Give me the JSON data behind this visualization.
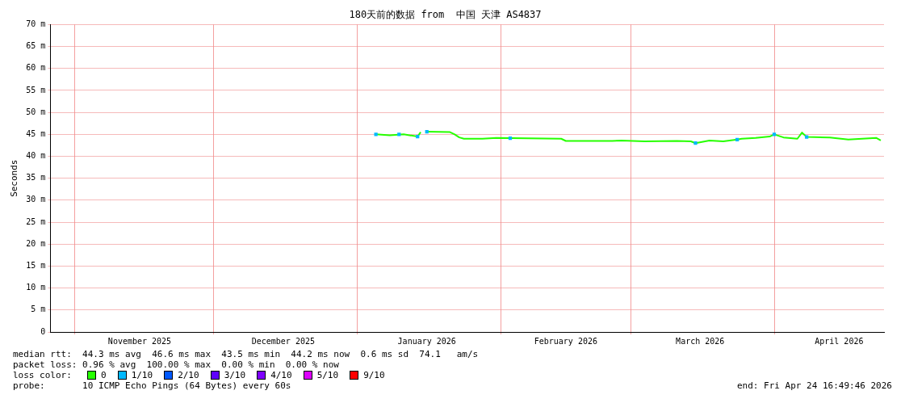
{
  "chart_data": {
    "type": "line",
    "title": "180天前的数据 from  中国 天津 AS4837",
    "ylabel": "Seconds",
    "legend_title": "loss color:",
    "xlim": [
      "2025-10-26T16:49",
      "2026-04-24T16:49"
    ],
    "xticks": [
      {
        "value": "2025-11-01",
        "label": null
      },
      {
        "value": "2025-11-15",
        "label": "November 2025"
      },
      {
        "value": "2025-12-01",
        "label": null
      },
      {
        "value": "2025-12-16",
        "label": "December 2025"
      },
      {
        "value": "2026-01-01",
        "label": null
      },
      {
        "value": "2026-01-16",
        "label": "January 2026"
      },
      {
        "value": "2026-02-01",
        "label": null
      },
      {
        "value": "2026-02-15",
        "label": "February 2026"
      },
      {
        "value": "2026-03-01",
        "label": null
      },
      {
        "value": "2026-03-16",
        "label": "March 2026"
      },
      {
        "value": "2026-04-01",
        "label": null
      },
      {
        "value": "2026-04-15",
        "label": "April 2026"
      }
    ],
    "ylim": [
      0,
      70
    ],
    "yticks": [
      0,
      {
        "value": 5,
        "label": "5 m"
      },
      {
        "value": 10,
        "label": "10 m"
      },
      {
        "value": 15,
        "label": "15 m"
      },
      {
        "value": 20,
        "label": "20 m"
      },
      {
        "value": 25,
        "label": "25 m"
      },
      {
        "value": 30,
        "label": "30 m"
      },
      {
        "value": 35,
        "label": "35 m"
      },
      {
        "value": 40,
        "label": "40 m"
      },
      {
        "value": 45,
        "label": "45 m"
      },
      {
        "value": 50,
        "label": "50 m"
      },
      {
        "value": 55,
        "label": "55 m"
      },
      {
        "value": 60,
        "label": "60 m"
      },
      {
        "value": 65,
        "label": "65 m"
      },
      {
        "value": 70,
        "label": "70 m"
      }
    ],
    "grid": true,
    "legend": "bottom",
    "line_style": "solid",
    "series": [
      {
        "name": "0",
        "color": "#26ff00",
        "marker": "none",
        "x": [
          "2026-01-05",
          "2026-01-08",
          "2026-01-11",
          "2026-01-14",
          "2026-01-14T16:00",
          "2026-01-15",
          "2026-01-16",
          "2026-01-21",
          "2026-01-22",
          "2026-01-23",
          "2026-01-24",
          "2026-01-28",
          "2026-01-31",
          "2026-02-07",
          "2026-02-14",
          "2026-02-15",
          "2026-02-25",
          "2026-02-27",
          "2026-03-04",
          "2026-03-11",
          "2026-03-14",
          "2026-03-15",
          "2026-03-18",
          "2026-03-21",
          "2026-03-24",
          "2026-03-25",
          "2026-03-28",
          "2026-03-31",
          "2026-04-01",
          "2026-04-03",
          "2026-04-06",
          "2026-04-07",
          "2026-04-08",
          "2026-04-13",
          "2026-04-17",
          "2026-04-20",
          "2026-04-23",
          "2026-04-24"
        ],
        "values": [
          45.0,
          44.8,
          45.0,
          44.5,
          45.5,
          null,
          45.6,
          45.5,
          45.0,
          44.3,
          44.0,
          44.0,
          44.2,
          44.1,
          44.0,
          43.5,
          43.5,
          43.6,
          43.4,
          43.5,
          43.4,
          43.0,
          43.6,
          43.4,
          43.8,
          44.0,
          44.2,
          44.5,
          45.0,
          44.3,
          44.0,
          45.4,
          44.4,
          44.3,
          43.8,
          44.0,
          44.2,
          43.6
        ]
      },
      {
        "name": "1/10",
        "color": "#00b8ff",
        "type": "scatter",
        "marker": "square",
        "x": [
          "2026-01-05",
          "2026-01-10",
          "2026-01-14",
          "2026-01-16",
          "2026-02-03",
          "2026-03-15",
          "2026-03-24",
          "2026-04-01",
          "2026-04-08"
        ],
        "values": [
          45.0,
          45.0,
          44.5,
          45.6,
          44.1,
          43.0,
          43.8,
          45.0,
          44.4
        ]
      },
      {
        "name": "2/10",
        "color": "#0059ff"
      },
      {
        "name": "3/10",
        "color": "#5e00ff"
      },
      {
        "name": "4/10",
        "color": "#7e00ff"
      },
      {
        "name": "5/10",
        "color": "#dd00ff"
      },
      {
        "name": "9/10",
        "color": "#ff0000"
      }
    ],
    "annotations": [
      "median rtt:  44.3 ms avg  46.6 ms max  43.5 ms min  44.2 ms now  0.6 ms sd  74.1   am/s",
      "packet loss: 0.96 % avg  100.00 % max  0.00 % min  0.00 % now",
      "probe:       10 ICMP Echo Pings (64 Bytes) every 60s",
      "end: Fri Apr 24 16:49:46 2026"
    ]
  }
}
